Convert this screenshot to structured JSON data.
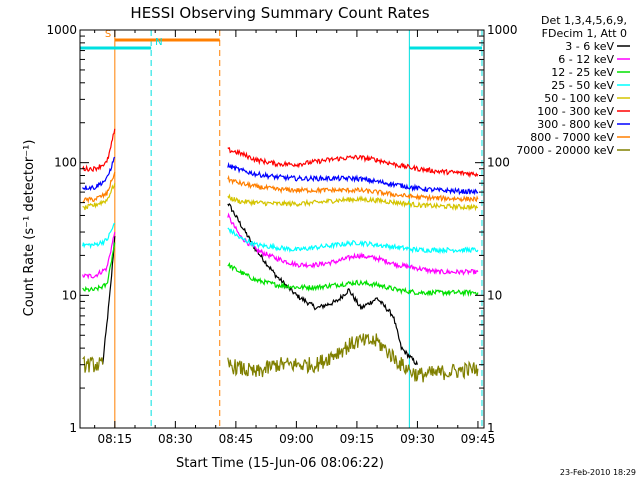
{
  "chart_data": {
    "type": "line",
    "title": "HESSI Observing Summary Count Rates",
    "xlabel": "Start Time (15-Jun-06 08:06:22)",
    "ylabel": "Count Rate (s⁻¹ detector⁻¹)",
    "y_scale": "log",
    "ylim": [
      1,
      1000
    ],
    "xlim": [
      "08:06:22",
      "09:46:30"
    ],
    "x_ticks": [
      "08:15",
      "08:30",
      "08:45",
      "09:00",
      "09:15",
      "09:30",
      "09:45"
    ],
    "y_ticks": [
      "1",
      "10",
      "100",
      "1000"
    ],
    "legend_header": [
      "Det 1,3,4,5,6,9,",
      "FDecim 1, Att 0"
    ],
    "legend_position": "right",
    "footer_date": "23-Feb-2010 18:29",
    "flags": [
      {
        "label": "S",
        "start": "08:15",
        "end": "08:41",
        "color": "#ff7f00"
      },
      {
        "label": "N",
        "start": "08:06",
        "end": "08:24",
        "color": "#00e0e0"
      },
      {
        "label": "",
        "start": "09:28",
        "end": "09:46",
        "color": "#00e0e0"
      }
    ],
    "vlines": [
      {
        "time": "08:15",
        "color": "#ff7f00",
        "style": "solid"
      },
      {
        "time": "08:24",
        "color": "#00e0e0",
        "style": "dashed"
      },
      {
        "time": "08:41",
        "color": "#ff7f00",
        "style": "dashed"
      },
      {
        "time": "09:28",
        "color": "#00e0e0",
        "style": "solid"
      },
      {
        "time": "09:46",
        "color": "#00e0e0",
        "style": "dashed"
      }
    ],
    "series": [
      {
        "name": "3 - 6 keV",
        "color": "#000000",
        "points": [
          [
            "08:12",
            3
          ],
          [
            "08:13",
            6
          ],
          [
            "08:14",
            12
          ],
          [
            "08:15",
            28
          ],
          [
            "08:43",
            50
          ],
          [
            "08:46",
            35
          ],
          [
            "08:50",
            22
          ],
          [
            "08:55",
            14
          ],
          [
            "09:00",
            10
          ],
          [
            "09:05",
            8
          ],
          [
            "09:10",
            9
          ],
          [
            "09:13",
            11
          ],
          [
            "09:16",
            8
          ],
          [
            "09:20",
            9.5
          ],
          [
            "09:24",
            7
          ],
          [
            "09:26",
            4
          ],
          [
            "09:30",
            3
          ]
        ]
      },
      {
        "name": "6 - 12 keV",
        "color": "#ff00ff",
        "points": [
          [
            "08:07",
            14
          ],
          [
            "08:10",
            14
          ],
          [
            "08:13",
            16
          ],
          [
            "08:15",
            30
          ],
          [
            "08:43",
            40
          ],
          [
            "08:46",
            28
          ],
          [
            "08:50",
            22
          ],
          [
            "08:55",
            19
          ],
          [
            "09:00",
            17
          ],
          [
            "09:05",
            17
          ],
          [
            "09:10",
            18
          ],
          [
            "09:15",
            20
          ],
          [
            "09:20",
            19
          ],
          [
            "09:25",
            17
          ],
          [
            "09:30",
            16
          ],
          [
            "09:35",
            15
          ],
          [
            "09:45",
            15
          ]
        ]
      },
      {
        "name": "12 - 25 keV",
        "color": "#00e000",
        "points": [
          [
            "08:07",
            11
          ],
          [
            "08:10",
            11
          ],
          [
            "08:13",
            12
          ],
          [
            "08:15",
            25
          ],
          [
            "08:43",
            17
          ],
          [
            "08:46",
            15
          ],
          [
            "08:50",
            13
          ],
          [
            "08:55",
            12
          ],
          [
            "09:00",
            11.5
          ],
          [
            "09:05",
            11.5
          ],
          [
            "09:10",
            12
          ],
          [
            "09:15",
            12.5
          ],
          [
            "09:20",
            12
          ],
          [
            "09:25",
            11
          ],
          [
            "09:30",
            10.5
          ],
          [
            "09:35",
            10.5
          ],
          [
            "09:45",
            10.5
          ]
        ]
      },
      {
        "name": "25 - 50 keV",
        "color": "#00ffff",
        "points": [
          [
            "08:07",
            24
          ],
          [
            "08:10",
            24
          ],
          [
            "08:13",
            26
          ],
          [
            "08:15",
            35
          ],
          [
            "08:43",
            32
          ],
          [
            "08:46",
            27
          ],
          [
            "08:50",
            24
          ],
          [
            "08:55",
            23
          ],
          [
            "09:00",
            22
          ],
          [
            "09:05",
            23
          ],
          [
            "09:10",
            24
          ],
          [
            "09:15",
            25
          ],
          [
            "09:20",
            24
          ],
          [
            "09:25",
            23
          ],
          [
            "09:30",
            22
          ],
          [
            "09:35",
            22
          ],
          [
            "09:45",
            22
          ]
        ]
      },
      {
        "name": "50 - 100 keV",
        "color": "#d4c400",
        "points": [
          [
            "08:07",
            45
          ],
          [
            "08:10",
            48
          ],
          [
            "08:13",
            52
          ],
          [
            "08:15",
            70
          ],
          [
            "08:43",
            55
          ],
          [
            "08:46",
            51
          ],
          [
            "08:50",
            50
          ],
          [
            "08:55",
            49
          ],
          [
            "09:00",
            49
          ],
          [
            "09:05",
            50
          ],
          [
            "09:10",
            52
          ],
          [
            "09:15",
            53
          ],
          [
            "09:20",
            52
          ],
          [
            "09:25",
            50
          ],
          [
            "09:30",
            48
          ],
          [
            "09:35",
            47
          ],
          [
            "09:45",
            46
          ]
        ]
      },
      {
        "name": "100 - 300 keV",
        "color": "#ff0000",
        "points": [
          [
            "08:07",
            90
          ],
          [
            "08:10",
            90
          ],
          [
            "08:13",
            100
          ],
          [
            "08:14",
            130
          ],
          [
            "08:15",
            180
          ],
          [
            "08:43",
            125
          ],
          [
            "08:46",
            118
          ],
          [
            "08:50",
            105
          ],
          [
            "08:55",
            98
          ],
          [
            "09:00",
            97
          ],
          [
            "09:05",
            102
          ],
          [
            "09:10",
            107
          ],
          [
            "09:15",
            110
          ],
          [
            "09:20",
            105
          ],
          [
            "09:25",
            96
          ],
          [
            "09:30",
            90
          ],
          [
            "09:35",
            86
          ],
          [
            "09:45",
            82
          ]
        ]
      },
      {
        "name": "300 - 800 keV",
        "color": "#0000ff",
        "points": [
          [
            "08:07",
            65
          ],
          [
            "08:10",
            65
          ],
          [
            "08:13",
            75
          ],
          [
            "08:15",
            110
          ],
          [
            "08:43",
            95
          ],
          [
            "08:46",
            88
          ],
          [
            "08:50",
            82
          ],
          [
            "08:55",
            78
          ],
          [
            "09:00",
            76
          ],
          [
            "09:05",
            76
          ],
          [
            "09:10",
            76
          ],
          [
            "09:15",
            76
          ],
          [
            "09:20",
            72
          ],
          [
            "09:25",
            68
          ],
          [
            "09:30",
            64
          ],
          [
            "09:35",
            62
          ],
          [
            "09:45",
            60
          ]
        ]
      },
      {
        "name": "800 - 7000 keV",
        "color": "#ff7f00",
        "points": [
          [
            "08:07",
            52
          ],
          [
            "08:10",
            53
          ],
          [
            "08:13",
            58
          ],
          [
            "08:15",
            85
          ],
          [
            "08:43",
            75
          ],
          [
            "08:46",
            70
          ],
          [
            "08:50",
            66
          ],
          [
            "08:55",
            63
          ],
          [
            "09:00",
            62
          ],
          [
            "09:05",
            62
          ],
          [
            "09:10",
            62
          ],
          [
            "09:15",
            62
          ],
          [
            "09:20",
            60
          ],
          [
            "09:25",
            57
          ],
          [
            "09:30",
            55
          ],
          [
            "09:35",
            54
          ],
          [
            "09:45",
            53
          ]
        ]
      },
      {
        "name": "7000 - 20000 keV",
        "color": "#808000",
        "points": [
          [
            "08:07",
            3
          ],
          [
            "08:10",
            3
          ],
          [
            "08:12",
            3
          ],
          [
            "08:43",
            3
          ],
          [
            "08:50",
            2.6
          ],
          [
            "08:55",
            3
          ],
          [
            "09:00",
            3
          ],
          [
            "09:05",
            3
          ],
          [
            "09:10",
            3.7
          ],
          [
            "09:15",
            4.5
          ],
          [
            "09:20",
            4.5
          ],
          [
            "09:26",
            3
          ],
          [
            "09:30",
            2.5
          ],
          [
            "09:35",
            2.6
          ],
          [
            "09:40",
            2.7
          ],
          [
            "09:45",
            2.8
          ]
        ]
      }
    ]
  }
}
